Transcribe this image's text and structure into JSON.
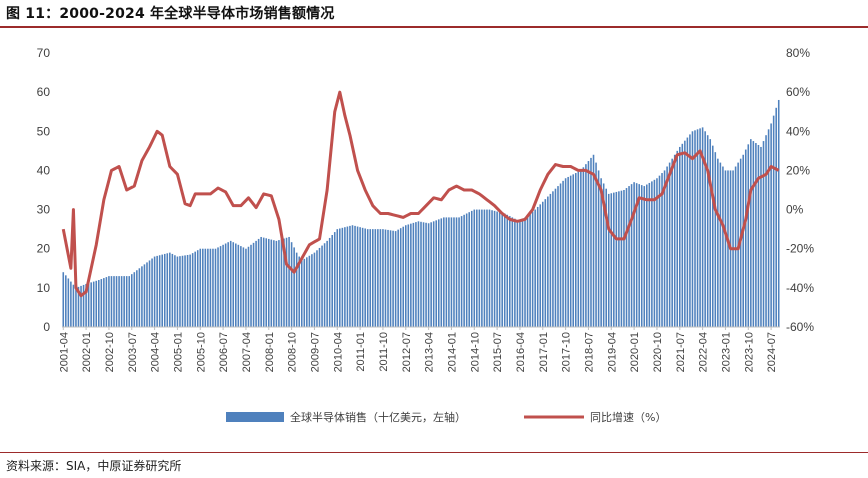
{
  "header": {
    "title": "图 11：2000-2024 年全球半导体市场销售额情况"
  },
  "footer": {
    "source": "资料来源：SIA，中原证券研究所"
  },
  "colors": {
    "bar": "#4f81bd",
    "line": "#c0504d",
    "accent": "#9c2b2b"
  },
  "chart_data": {
    "type": "bar",
    "title": "",
    "x_start": "2001-04",
    "x_end": "2024-10",
    "x_tick_labels": [
      "2001-04",
      "2002-01",
      "2002-10",
      "2003-07",
      "2004-04",
      "2005-01",
      "2005-10",
      "2006-07",
      "2007-04",
      "2008-01",
      "2008-10",
      "2009-07",
      "2010-04",
      "2011-01",
      "2011-10",
      "2012-07",
      "2013-04",
      "2014-01",
      "2014-10",
      "2015-07",
      "2016-04",
      "2017-01",
      "2017-10",
      "2018-07",
      "2019-04",
      "2020-01",
      "2020-10",
      "2021-07",
      "2022-04",
      "2023-01",
      "2023-10",
      "2024-07"
    ],
    "y_left": {
      "min": 0,
      "max": 70,
      "step": 10,
      "ticks": [
        "0",
        "10",
        "20",
        "30",
        "40",
        "50",
        "60",
        "70"
      ]
    },
    "y_right": {
      "min": -60,
      "max": 80,
      "step": 20,
      "ticks": [
        "-60%",
        "-40%",
        "-20%",
        "0%",
        "20%",
        "40%",
        "60%",
        "80%"
      ]
    },
    "legend_position": "bottom-center",
    "series": [
      {
        "name": "全球半导体销售（十亿美元，左轴）",
        "axis": "left",
        "kind": "bar",
        "keypoints": [
          [
            "2001-04",
            14
          ],
          [
            "2001-09",
            10
          ],
          [
            "2002-01",
            11
          ],
          [
            "2002-06",
            12
          ],
          [
            "2002-10",
            13
          ],
          [
            "2003-06",
            13
          ],
          [
            "2003-10",
            15
          ],
          [
            "2004-04",
            18
          ],
          [
            "2004-10",
            19
          ],
          [
            "2005-01",
            18
          ],
          [
            "2005-06",
            18.5
          ],
          [
            "2005-10",
            20
          ],
          [
            "2006-04",
            20
          ],
          [
            "2006-10",
            22
          ],
          [
            "2007-01",
            21
          ],
          [
            "2007-04",
            20
          ],
          [
            "2007-10",
            23
          ],
          [
            "2008-04",
            22
          ],
          [
            "2008-09",
            23
          ],
          [
            "2008-12",
            19
          ],
          [
            "2009-02",
            17
          ],
          [
            "2009-07",
            19
          ],
          [
            "2009-12",
            22
          ],
          [
            "2010-04",
            25
          ],
          [
            "2010-10",
            26
          ],
          [
            "2011-04",
            25
          ],
          [
            "2011-10",
            25
          ],
          [
            "2012-03",
            24.5
          ],
          [
            "2012-07",
            26
          ],
          [
            "2012-12",
            27
          ],
          [
            "2013-04",
            26.5
          ],
          [
            "2013-10",
            28
          ],
          [
            "2014-04",
            28
          ],
          [
            "2014-10",
            30
          ],
          [
            "2015-04",
            30
          ],
          [
            "2015-10",
            29
          ],
          [
            "2016-04",
            27
          ],
          [
            "2016-10",
            30
          ],
          [
            "2017-01",
            32
          ],
          [
            "2017-07",
            36
          ],
          [
            "2017-10",
            38
          ],
          [
            "2018-04",
            40
          ],
          [
            "2018-09",
            44
          ],
          [
            "2018-12",
            38
          ],
          [
            "2019-03",
            34
          ],
          [
            "2019-09",
            35
          ],
          [
            "2020-01",
            37
          ],
          [
            "2020-05",
            36
          ],
          [
            "2020-10",
            38
          ],
          [
            "2021-01",
            40
          ],
          [
            "2021-07",
            46
          ],
          [
            "2021-12",
            50
          ],
          [
            "2022-04",
            51
          ],
          [
            "2022-07",
            48
          ],
          [
            "2022-10",
            43
          ],
          [
            "2023-01",
            40
          ],
          [
            "2023-04",
            40
          ],
          [
            "2023-08",
            44
          ],
          [
            "2023-11",
            48
          ],
          [
            "2024-03",
            46
          ],
          [
            "2024-07",
            52
          ],
          [
            "2024-10",
            58
          ]
        ]
      },
      {
        "name": "同比增速（%）",
        "axis": "right",
        "kind": "line",
        "keypoints": [
          [
            "2001-04",
            -10
          ],
          [
            "2001-07",
            -30
          ],
          [
            "2001-08",
            0
          ],
          [
            "2001-09",
            -40
          ],
          [
            "2001-11",
            -44
          ],
          [
            "2002-01",
            -42
          ],
          [
            "2002-05",
            -18
          ],
          [
            "2002-08",
            5
          ],
          [
            "2002-11",
            20
          ],
          [
            "2003-02",
            22
          ],
          [
            "2003-05",
            10
          ],
          [
            "2003-08",
            12
          ],
          [
            "2003-11",
            25
          ],
          [
            "2004-02",
            32
          ],
          [
            "2004-05",
            40
          ],
          [
            "2004-07",
            38
          ],
          [
            "2004-10",
            22
          ],
          [
            "2005-01",
            18
          ],
          [
            "2005-04",
            3
          ],
          [
            "2005-06",
            2
          ],
          [
            "2005-08",
            8
          ],
          [
            "2005-11",
            8
          ],
          [
            "2006-02",
            8
          ],
          [
            "2006-05",
            11
          ],
          [
            "2006-08",
            9
          ],
          [
            "2006-11",
            2
          ],
          [
            "2007-02",
            2
          ],
          [
            "2007-05",
            6
          ],
          [
            "2007-08",
            1
          ],
          [
            "2007-11",
            8
          ],
          [
            "2008-02",
            7
          ],
          [
            "2008-05",
            -5
          ],
          [
            "2008-08",
            -28
          ],
          [
            "2008-11",
            -32
          ],
          [
            "2009-02",
            -25
          ],
          [
            "2009-05",
            -18
          ],
          [
            "2009-09",
            -15
          ],
          [
            "2009-12",
            10
          ],
          [
            "2010-03",
            50
          ],
          [
            "2010-05",
            60
          ],
          [
            "2010-07",
            48
          ],
          [
            "2010-09",
            38
          ],
          [
            "2010-12",
            20
          ],
          [
            "2011-03",
            10
          ],
          [
            "2011-06",
            2
          ],
          [
            "2011-09",
            -2
          ],
          [
            "2011-12",
            -2
          ],
          [
            "2012-03",
            -3
          ],
          [
            "2012-06",
            -4
          ],
          [
            "2012-09",
            -2
          ],
          [
            "2012-12",
            -2
          ],
          [
            "2013-03",
            2
          ],
          [
            "2013-06",
            6
          ],
          [
            "2013-09",
            5
          ],
          [
            "2013-12",
            10
          ],
          [
            "2014-03",
            12
          ],
          [
            "2014-06",
            10
          ],
          [
            "2014-09",
            10
          ],
          [
            "2014-12",
            8
          ],
          [
            "2015-03",
            5
          ],
          [
            "2015-06",
            2
          ],
          [
            "2015-09",
            -2
          ],
          [
            "2015-12",
            -5
          ],
          [
            "2016-03",
            -6
          ],
          [
            "2016-06",
            -5
          ],
          [
            "2016-09",
            0
          ],
          [
            "2016-12",
            10
          ],
          [
            "2017-03",
            18
          ],
          [
            "2017-06",
            23
          ],
          [
            "2017-09",
            22
          ],
          [
            "2017-12",
            22
          ],
          [
            "2018-03",
            20
          ],
          [
            "2018-06",
            20
          ],
          [
            "2018-09",
            18
          ],
          [
            "2018-12",
            10
          ],
          [
            "2019-03",
            -10
          ],
          [
            "2019-06",
            -15
          ],
          [
            "2019-09",
            -15
          ],
          [
            "2019-12",
            -5
          ],
          [
            "2020-03",
            6
          ],
          [
            "2020-06",
            5
          ],
          [
            "2020-09",
            5
          ],
          [
            "2020-12",
            8
          ],
          [
            "2021-03",
            18
          ],
          [
            "2021-06",
            28
          ],
          [
            "2021-09",
            29
          ],
          [
            "2021-12",
            26
          ],
          [
            "2022-03",
            30
          ],
          [
            "2022-06",
            20
          ],
          [
            "2022-09",
            0
          ],
          [
            "2022-12",
            -8
          ],
          [
            "2023-03",
            -20
          ],
          [
            "2023-06",
            -20
          ],
          [
            "2023-09",
            -5
          ],
          [
            "2023-11",
            10
          ],
          [
            "2024-02",
            16
          ],
          [
            "2024-05",
            18
          ],
          [
            "2024-07",
            22
          ],
          [
            "2024-10",
            20
          ]
        ]
      }
    ]
  }
}
